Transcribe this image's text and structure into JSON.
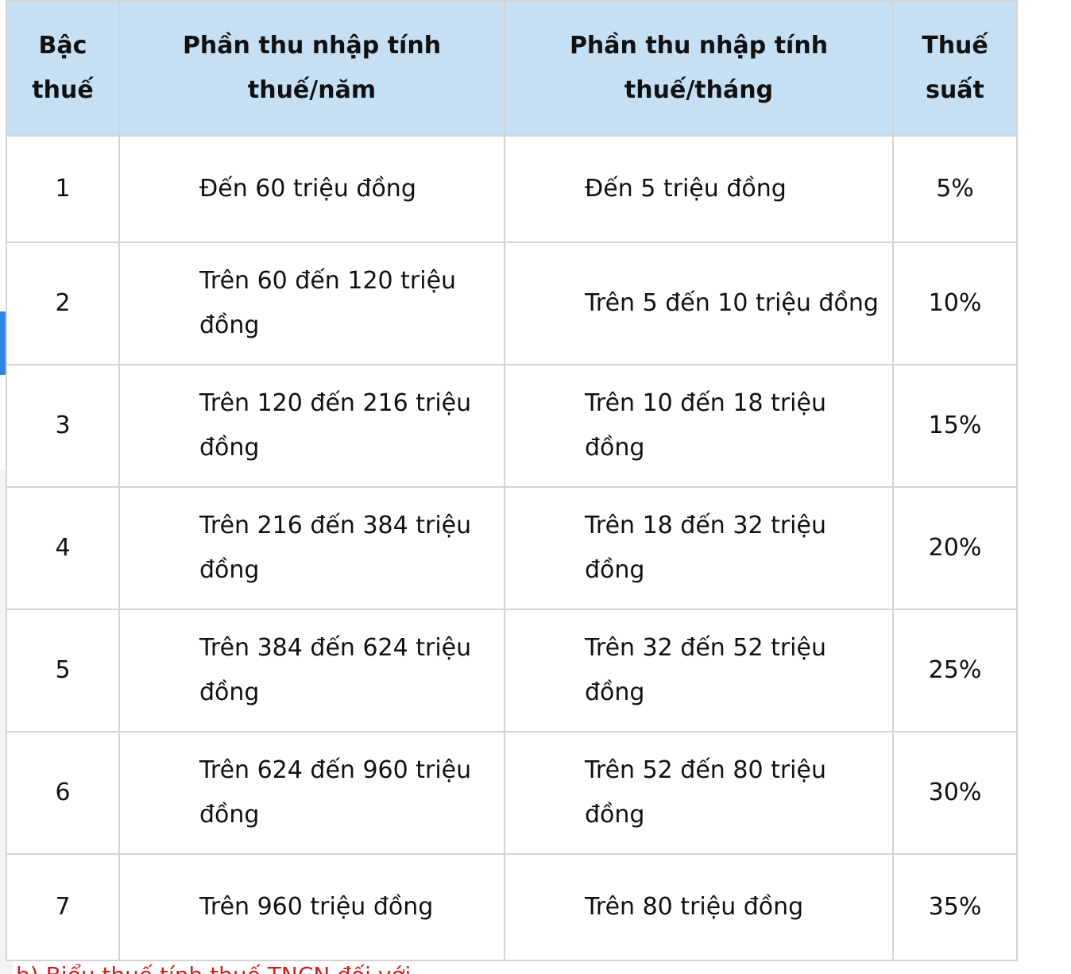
{
  "table": {
    "headers": {
      "rank": "Bậc thuế",
      "annual": "Phần thu nhập tính thuế/năm",
      "monthly": "Phần thu nhập tính thuế/tháng",
      "rate": "Thuế suất"
    },
    "rows": [
      {
        "rank": "1",
        "annual": "Đến 60 triệu đồng",
        "monthly": "Đến 5 triệu đồng",
        "rate": "5%"
      },
      {
        "rank": "2",
        "annual": "Trên 60 đến 120 triệu đồng",
        "monthly": "Trên 5 đến 10 triệu đồng",
        "rate": "10%"
      },
      {
        "rank": "3",
        "annual": "Trên 120 đến 216 triệu đồng",
        "monthly": "Trên 10 đến 18 triệu đồng",
        "rate": "15%"
      },
      {
        "rank": "4",
        "annual": "Trên 216 đến 384 triệu đồng",
        "monthly": "Trên 18 đến 32 triệu đồng",
        "rate": "20%"
      },
      {
        "rank": "5",
        "annual": "Trên 384 đến 624 triệu đồng",
        "monthly": "Trên 32 đến 52 triệu đồng",
        "rate": "25%"
      },
      {
        "rank": "6",
        "annual": "Trên 624 đến 960 triệu đồng",
        "monthly": "Trên 52 đến 80 triệu đồng",
        "rate": "30%"
      },
      {
        "rank": "7",
        "annual": "Trên 960 triệu đồng",
        "monthly": "Trên 80 triệu đồng",
        "rate": "35%"
      }
    ]
  },
  "bottom_note": "b) Biểu thuế tính thuế TNCN đối với",
  "colors": {
    "header_bg": "#c5e0f4",
    "border": "#d4d4d4",
    "side_tab": "#2f86e8",
    "note": "#cc2222"
  }
}
